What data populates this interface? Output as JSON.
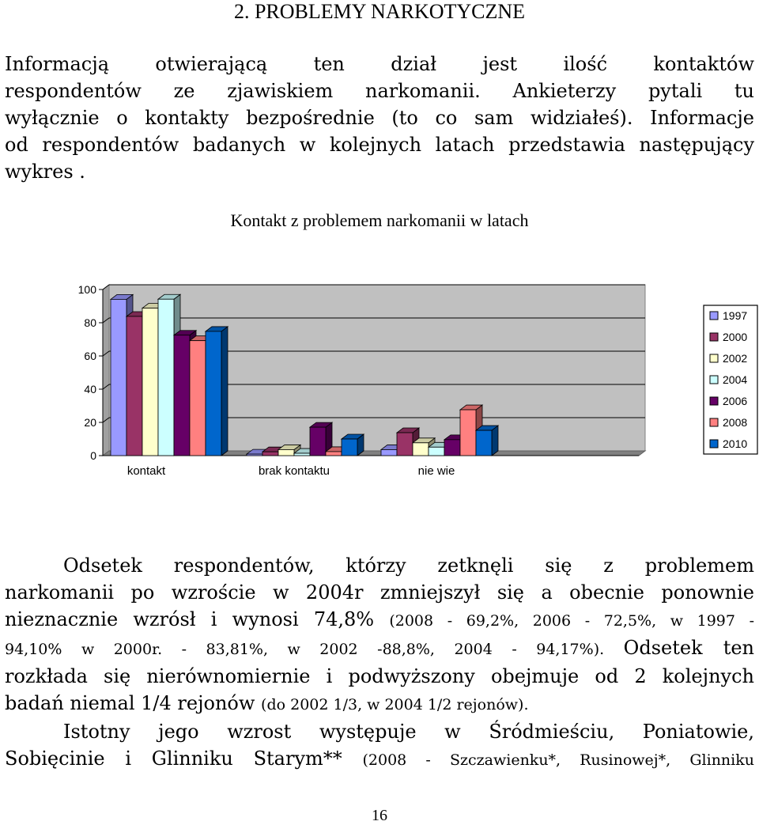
{
  "heading": "2. PROBLEMY NARKOTYCZNE",
  "intro_lines": [
    "Informacją otwierającą ten dział jest ilość kontaktów",
    "respondentów ze zjawiskiem narkomanii. Ankieterzy pytali tu",
    "wyłącznie o kontakty bezpośrednie (to co sam widziałeś). Informacje",
    "od respondentów badanych w kolejnych latach przedstawia następujący",
    "wykres ."
  ],
  "chart_data": {
    "type": "bar",
    "title": "Kontakt z problemem narkomanii w latach",
    "categories": [
      "kontakt",
      "brak kontaktu",
      "nie wie"
    ],
    "series": [
      {
        "name": "1997",
        "color": "#9999ff",
        "values": [
          94.1,
          0.9,
          3.6
        ]
      },
      {
        "name": "2000",
        "color": "#993366",
        "values": [
          83.81,
          2.3,
          13.8
        ]
      },
      {
        "name": "2002",
        "color": "#ffffcc",
        "values": [
          88.8,
          3.6,
          7.7
        ]
      },
      {
        "name": "2004",
        "color": "#ccffff",
        "values": [
          94.17,
          1.4,
          5.1
        ]
      },
      {
        "name": "2006",
        "color": "#660066",
        "values": [
          72.5,
          17.1,
          9.6
        ]
      },
      {
        "name": "2008",
        "color": "#ff8080",
        "values": [
          69.2,
          2.4,
          27.6
        ]
      },
      {
        "name": "2010",
        "color": "#0066cc",
        "values": [
          74.8,
          10.0,
          15.2
        ]
      }
    ],
    "y_ticks": [
      "0",
      "20",
      "40",
      "60",
      "80",
      "100"
    ],
    "ylim": [
      0,
      100
    ],
    "legend_position": "right",
    "grid": true
  },
  "body_lines": [
    {
      "cls": "j ind",
      "segments": [
        {
          "t": "Odsetek respondentów, którzy zetknęli się z problemem"
        }
      ]
    },
    {
      "cls": "j",
      "segments": [
        {
          "t": "narkomanii po wzroście w 2004r zmniejszył się a obecnie ponownie"
        }
      ]
    },
    {
      "cls": "j",
      "segments": [
        {
          "t": "nieznacznie wzrósł i wynosi 74,8% "
        },
        {
          "t": "(2008 - 69,2%, 2006 - 72,5%, w 1997 -",
          "small": true
        }
      ]
    },
    {
      "cls": "j",
      "segments": [
        {
          "t": "94,10% w 2000r. - 83,81%, w 2002 -88,8%, 2004 - 94,17%). ",
          "small": true
        },
        {
          "t": "Odsetek ten"
        }
      ]
    },
    {
      "cls": "j",
      "segments": [
        {
          "t": "rozkłada się nierównomiernie i podwyższony obejmuje od 2 kolejnych"
        }
      ]
    },
    {
      "cls": "",
      "segments": [
        {
          "t": "badań niemal 1/4 rejonów "
        },
        {
          "t": "(do 2002 1/3, w 2004 1/2 rejonów).",
          "small": true
        }
      ]
    },
    {
      "cls": "j ind",
      "segments": [
        {
          "t": "Istotny jego wzrost występuje w Śródmieściu, Poniatowie,"
        }
      ]
    },
    {
      "cls": "j",
      "segments": [
        {
          "t": "Sobięcinie i Glinniku Starym** "
        },
        {
          "t": "(2008 - Szczawienku*, Rusinowej*, Glinniku",
          "small": true
        }
      ]
    }
  ],
  "page_number": "16"
}
